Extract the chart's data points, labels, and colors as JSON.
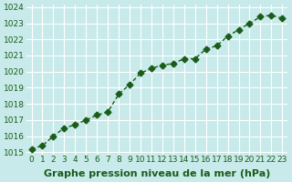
{
  "x": [
    0,
    1,
    2,
    3,
    4,
    5,
    6,
    7,
    8,
    9,
    10,
    11,
    12,
    13,
    14,
    15,
    16,
    17,
    18,
    19,
    20,
    21,
    22,
    23
  ],
  "y": [
    1015.2,
    1015.4,
    1016.0,
    1016.5,
    1016.7,
    1017.0,
    1017.3,
    1017.5,
    1018.6,
    1019.2,
    1019.9,
    1020.2,
    1020.4,
    1020.5,
    1020.8,
    1020.8,
    1021.4,
    1021.6,
    1022.2,
    1022.6,
    1023.0,
    1023.4,
    1023.5,
    1023.3
  ],
  "line_color": "#1a5c1a",
  "marker": "D",
  "marker_size": 3.5,
  "bg_color": "#c8eaea",
  "grid_color": "#ffffff",
  "text_color": "#1a5c1a",
  "xlabel": "Graphe pression niveau de la mer (hPa)",
  "ylim": [
    1015,
    1024
  ],
  "xlim": [
    0,
    23
  ],
  "yticks": [
    1015,
    1016,
    1017,
    1018,
    1019,
    1020,
    1021,
    1022,
    1023,
    1024
  ],
  "xticks": [
    0,
    1,
    2,
    3,
    4,
    5,
    6,
    7,
    8,
    9,
    10,
    11,
    12,
    13,
    14,
    15,
    16,
    17,
    18,
    19,
    20,
    21,
    22,
    23
  ],
  "title_fontsize": 8,
  "tick_fontsize": 6.5
}
